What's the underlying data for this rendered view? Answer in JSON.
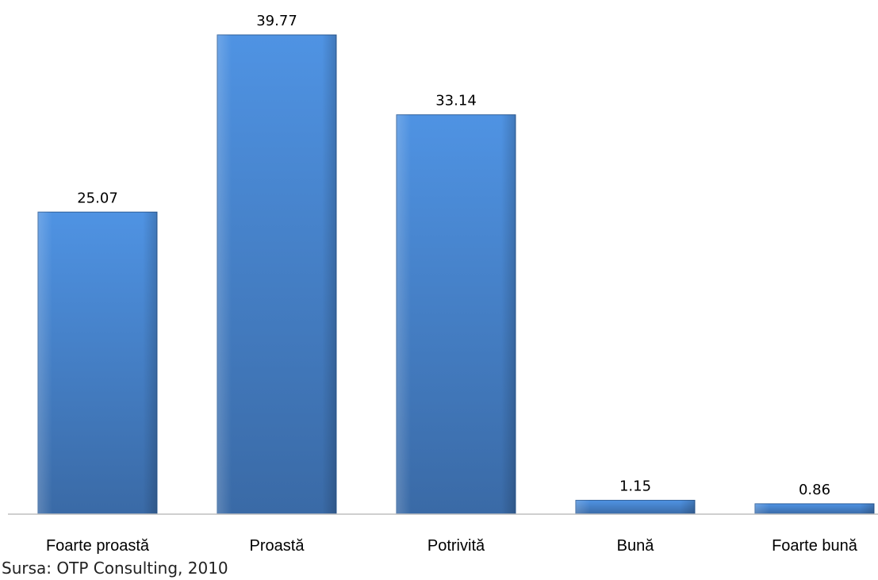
{
  "chart_data": {
    "type": "bar",
    "categories": [
      "Foarte proastă",
      "Proastă",
      "Potrivită",
      "Bună",
      "Foarte bună"
    ],
    "values": [
      25.07,
      39.77,
      33.14,
      1.15,
      0.86
    ],
    "data_labels": [
      "25.07",
      "39.77",
      "33.14",
      "1.15",
      "0.86"
    ],
    "title": "",
    "xlabel": "",
    "ylabel": "",
    "ylim": [
      0,
      40
    ],
    "grid": false,
    "legend": "none",
    "bar_color": "#4a8ad8"
  },
  "source": "Sursa: OTP Consulting, 2010"
}
